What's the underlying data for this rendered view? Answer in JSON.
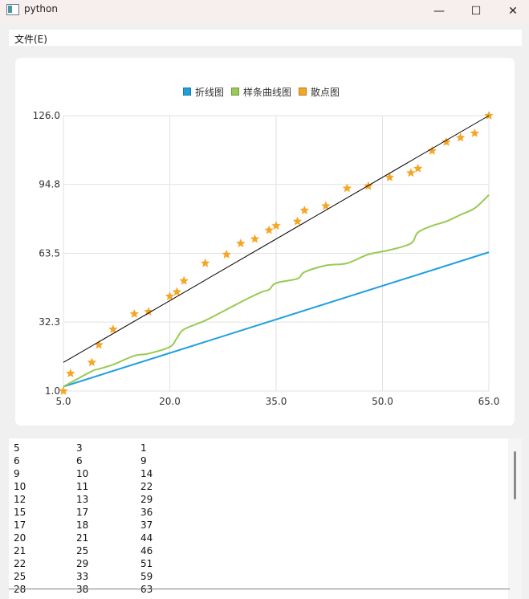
{
  "window": {
    "title": "python",
    "minimize_glyph": "—",
    "maximize_glyph": "☐",
    "close_glyph": "✕"
  },
  "menu": {
    "file_label": "文件(E)"
  },
  "chart_data": {
    "type": "line",
    "xlim": [
      5,
      65
    ],
    "ylim": [
      1,
      126
    ],
    "xticks": [
      "5.0",
      "20.0",
      "35.0",
      "50.0",
      "65.0"
    ],
    "yticks": [
      "1.0",
      "32.3",
      "63.5",
      "94.8",
      "126.0"
    ],
    "grid": true,
    "legend_position": "top-center",
    "series": [
      {
        "name": "折线图",
        "kind": "line",
        "color": "#209fdf",
        "x": [
          5,
          65
        ],
        "y": [
          3,
          64
        ]
      },
      {
        "name": "样条曲线图",
        "kind": "spline",
        "color": "#99ca53",
        "x": [
          5,
          9,
          10,
          12,
          15,
          17,
          20,
          21,
          22,
          25,
          28,
          31,
          33,
          34,
          35,
          38,
          39,
          42,
          45,
          48,
          51,
          54,
          55,
          57,
          59,
          61,
          63,
          65
        ],
        "y": [
          3,
          10,
          11,
          13,
          17,
          18,
          21,
          25,
          29,
          33,
          38,
          43,
          46,
          47,
          50,
          52,
          55,
          58,
          59,
          63,
          65,
          68,
          73,
          76,
          78,
          81,
          84,
          90
        ]
      },
      {
        "name": "散点图",
        "kind": "scatter",
        "marker": "star",
        "color": "#f6a625",
        "x": [
          5,
          6,
          9,
          10,
          12,
          15,
          17,
          20,
          21,
          22,
          25,
          28,
          30,
          32,
          34,
          35,
          38,
          39,
          42,
          45,
          48,
          51,
          54,
          55,
          57,
          59,
          61,
          63,
          65
        ],
        "y": [
          1,
          9,
          14,
          22,
          29,
          36,
          37,
          44,
          46,
          51,
          59,
          63,
          68,
          70,
          74,
          76,
          78,
          83,
          85,
          93,
          94,
          98,
          100,
          102,
          110,
          114,
          116,
          118,
          126
        ]
      },
      {
        "kind": "trendline",
        "color": "#000000",
        "x": [
          5,
          65
        ],
        "y": [
          14,
          126
        ]
      }
    ]
  },
  "table": {
    "rows": [
      [
        "5",
        "3",
        "1"
      ],
      [
        "6",
        "6",
        "9"
      ],
      [
        "9",
        "10",
        "14"
      ],
      [
        "10",
        "11",
        "22"
      ],
      [
        "12",
        "13",
        "29"
      ],
      [
        "15",
        "17",
        "36"
      ],
      [
        "17",
        "18",
        "37"
      ],
      [
        "20",
        "21",
        "44"
      ],
      [
        "21",
        "25",
        "46"
      ],
      [
        "22",
        "29",
        "51"
      ],
      [
        "25",
        "33",
        "59"
      ],
      [
        "28",
        "38",
        "63"
      ]
    ]
  }
}
